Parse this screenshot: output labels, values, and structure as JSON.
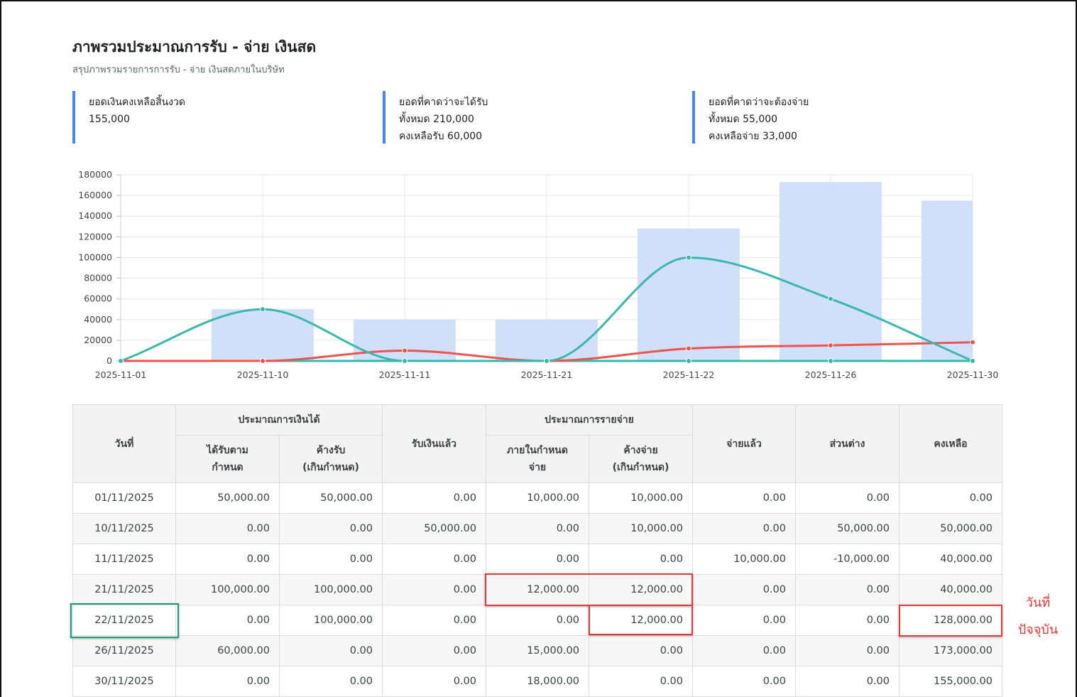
{
  "header": {
    "title": "ภาพรวมประมาณการรับ - จ่าย เงินสด",
    "subtitle": "สรุปภาพรวมรายการการรับ - จ่าย เงินสดภายในบริษัท"
  },
  "summary": [
    {
      "label": "ยอดเงินคงเหลือสิ้นงวด",
      "lines": [
        "155,000"
      ]
    },
    {
      "label": "ยอดที่คาดว่าจะได้รับ",
      "lines": [
        "ทั้งหมด 210,000",
        "คงเหลือรับ 60,000"
      ]
    },
    {
      "label": "ยอดที่คาดว่าจะต้องจ่าย",
      "lines": [
        "ทั้งหมด 55,000",
        "คงเหลือจ่าย 33,000"
      ]
    }
  ],
  "chart_data": {
    "type": "bar",
    "categories": [
      "2025-11-01",
      "2025-11-10",
      "2025-11-11",
      "2025-11-21",
      "2025-11-22",
      "2025-11-26",
      "2025-11-30"
    ],
    "ylim": [
      0,
      180000
    ],
    "yticks": [
      0,
      20000,
      40000,
      60000,
      80000,
      100000,
      120000,
      140000,
      160000,
      180000
    ],
    "grid": true,
    "legend": "none",
    "series": [
      {
        "type": "bar",
        "color": "#cfe0f8",
        "values": [
          0,
          50000,
          40000,
          40000,
          128000,
          173000,
          155000
        ]
      },
      {
        "type": "line",
        "smooth": true,
        "color": "#3bb7ad",
        "values": [
          0,
          50000,
          0,
          0,
          100000,
          60000,
          0
        ]
      },
      {
        "type": "line",
        "smooth": true,
        "color": "#ef5350",
        "values": [
          0,
          0,
          10000,
          0,
          12000,
          15000,
          18000
        ]
      },
      {
        "type": "line",
        "smooth": true,
        "color": "#3bb7ad",
        "values": [
          0,
          0,
          0,
          0,
          0,
          0,
          0
        ]
      }
    ]
  },
  "table": {
    "header": {
      "date": "วันที่",
      "income_group": "ประมาณการเงินได้",
      "income_due": "ได้รับตาม\nกำหนด",
      "income_overdue": "ค้างรับ\n(เกินกำหนด)",
      "received": "รับเงินแล้ว",
      "expense_group": "ประมาณการรายจ่าย",
      "expense_due": "ภายในกำหนด\nจ่าย",
      "expense_overdue": "ค้างจ่าย\n(เกินกำหนด)",
      "paid": "จ่ายแล้ว",
      "diff": "ส่วนต่าง",
      "balance": "คงเหลือ"
    },
    "rows": [
      [
        "01/11/2025",
        "50,000.00",
        "50,000.00",
        "0.00",
        "10,000.00",
        "10,000.00",
        "0.00",
        "0.00",
        "0.00"
      ],
      [
        "10/11/2025",
        "0.00",
        "0.00",
        "50,000.00",
        "0.00",
        "10,000.00",
        "0.00",
        "50,000.00",
        "50,000.00"
      ],
      [
        "11/11/2025",
        "0.00",
        "0.00",
        "0.00",
        "0.00",
        "0.00",
        "10,000.00",
        "-10,000.00",
        "40,000.00"
      ],
      [
        "21/11/2025",
        "100,000.00",
        "100,000.00",
        "0.00",
        "12,000.00",
        "12,000.00",
        "0.00",
        "0.00",
        "40,000.00"
      ],
      [
        "22/11/2025",
        "0.00",
        "100,000.00",
        "0.00",
        "0.00",
        "12,000.00",
        "0.00",
        "0.00",
        "128,000.00"
      ],
      [
        "26/11/2025",
        "60,000.00",
        "0.00",
        "0.00",
        "15,000.00",
        "0.00",
        "0.00",
        "0.00",
        "173,000.00"
      ],
      [
        "30/11/2025",
        "0.00",
        "0.00",
        "0.00",
        "18,000.00",
        "0.00",
        "0.00",
        "0.00",
        "155,000.00"
      ]
    ]
  },
  "annotation": {
    "current_day_note": "วันที่\nปัจจุบัน",
    "highlight_color": "#e53935",
    "current_row_color": "#1a9e7a"
  }
}
